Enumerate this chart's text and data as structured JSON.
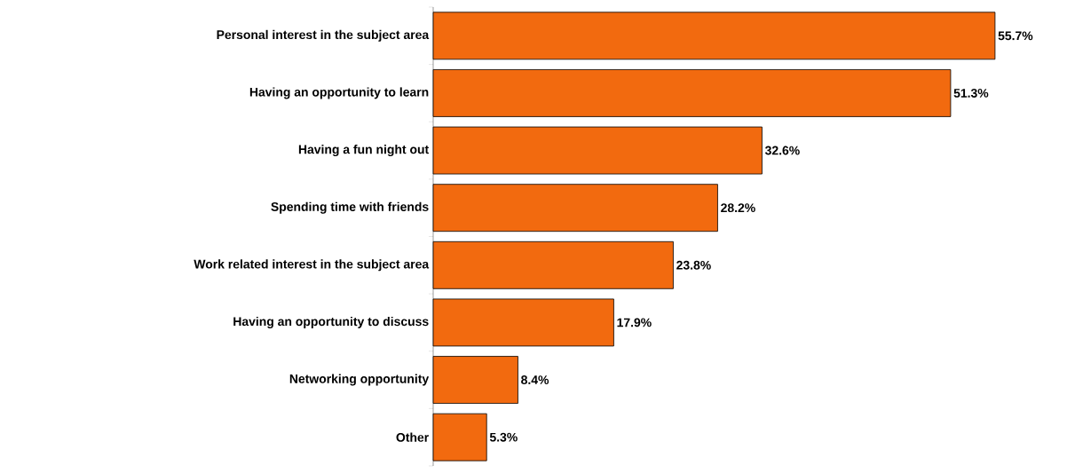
{
  "chart_data": {
    "type": "bar",
    "orientation": "horizontal",
    "categories": [
      "Personal interest in the subject area",
      "Having an opportunity to learn",
      "Having a fun night out",
      "Spending time with friends",
      "Work related interest in the subject area",
      "Having an opportunity to discuss",
      "Networking opportunity",
      "Other"
    ],
    "values": [
      55.7,
      51.3,
      32.6,
      28.2,
      23.8,
      17.9,
      8.4,
      5.3
    ],
    "value_labels": [
      "55.7%",
      "51.3%",
      "32.6%",
      "28.2%",
      "23.8%",
      "17.9%",
      "8.4%",
      "5.3%"
    ],
    "color": "#f26a0f"
  }
}
